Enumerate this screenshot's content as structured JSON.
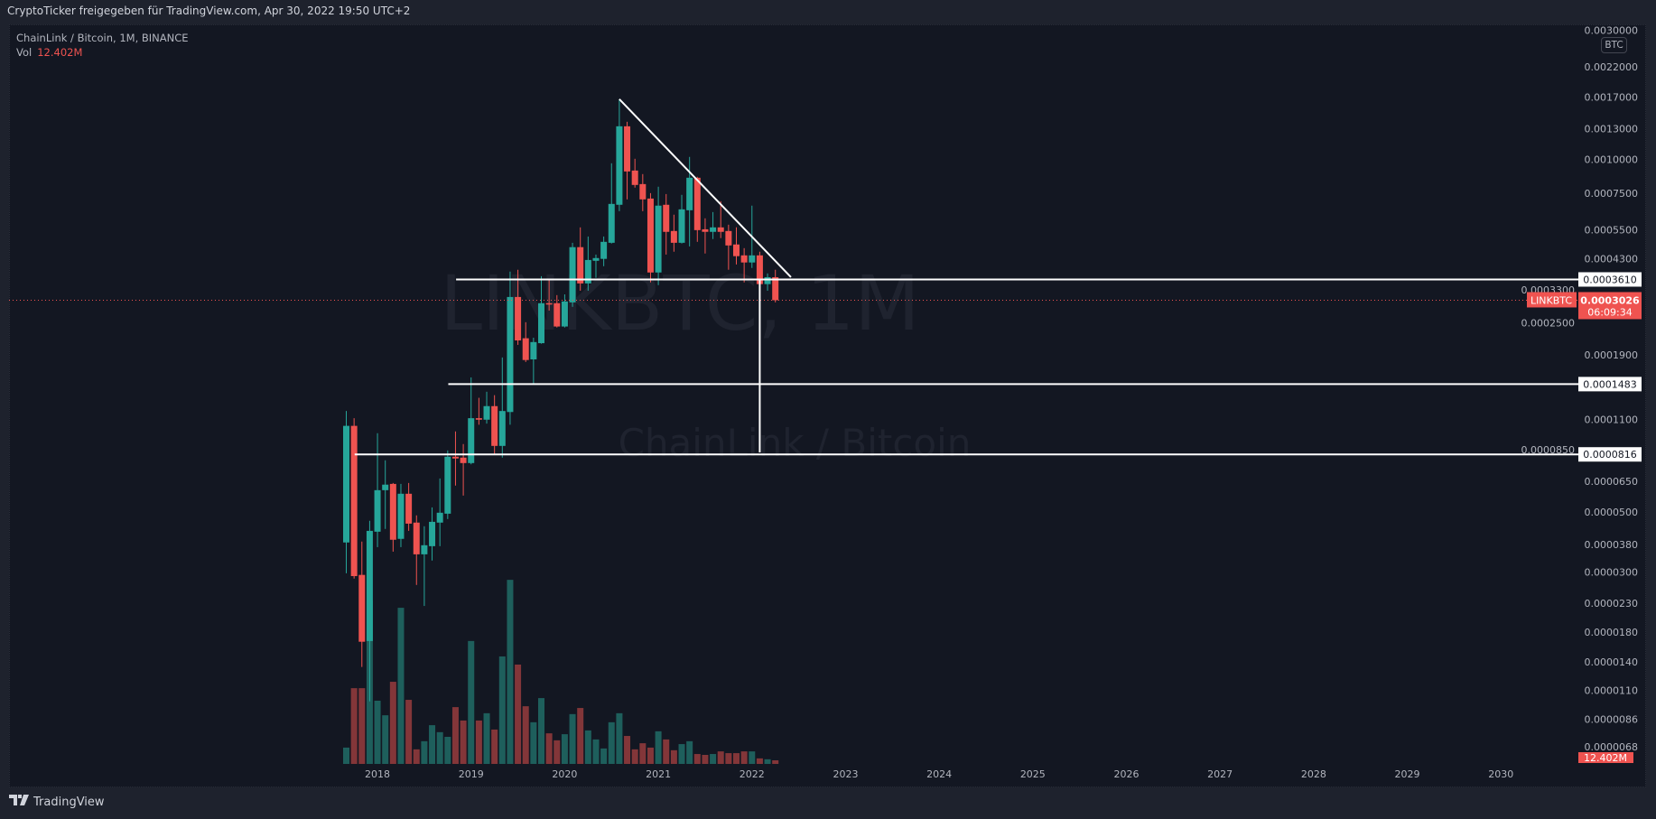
{
  "header": {
    "shared_by": "CryptoTicker freigegeben für TradingView.com, Apr 30, 2022 19:50 UTC+2"
  },
  "legend": {
    "symbol_line": "ChainLink / Bitcoin, 1M, BINANCE",
    "vol_label": "Vol",
    "vol_value": "12.402M"
  },
  "currency_badge": "BTC",
  "watermark": {
    "symbol": "LINKBTC, 1M",
    "description": "ChainLink / Bitcoin"
  },
  "footer": {
    "brand": "TradingView"
  },
  "colors": {
    "up": "#26a69a",
    "down": "#ef5350",
    "up_volume": "#1e5f5c",
    "down_volume": "#833639",
    "background": "#131722",
    "drawing": "#ffffff"
  },
  "chart_data": {
    "type": "candlestick",
    "symbol": "LINKBTC",
    "interval": "1M",
    "exchange": "BINANCE",
    "y_scale": "log",
    "ylim": [
      6.2e-06,
      0.0032
    ],
    "xlim": [
      "2017-09",
      "2030-12"
    ],
    "grid": false,
    "y_ticks": [
      "0.0030000",
      "0.0022000",
      "0.0017000",
      "0.0013000",
      "0.0010000",
      "0.0007500",
      "0.0005500",
      "0.0004300",
      "0.0003300",
      "0.0002500",
      "0.0001900",
      "0.0001100",
      "0.0000850",
      "0.0000650",
      "0.0000500",
      "0.0000380",
      "0.0000300",
      "0.0000230",
      "0.0000180",
      "0.0000140",
      "0.0000110",
      "0.0000086",
      "0.0000068"
    ],
    "x_ticks": [
      "2018",
      "2019",
      "2020",
      "2021",
      "2022",
      "2023",
      "2024",
      "2025",
      "2026",
      "2027",
      "2028",
      "2029",
      "2030"
    ],
    "columns": [
      "month",
      "open",
      "high",
      "low",
      "close",
      "volume_M"
    ],
    "rows": [
      [
        "2017-09",
        3.86e-05,
        0.000118,
        2.97e-05,
        0.000104,
        56
      ],
      [
        "2017-10",
        0.000104,
        0.000111,
        2.84e-05,
        2.9e-05,
        260
      ],
      [
        "2017-11",
        2.93e-05,
        3.89e-05,
        1.34e-05,
        1.66e-05,
        260
      ],
      [
        "2017-12",
        1.67e-05,
        4.64e-05,
        1e-05,
        4.26e-05,
        561
      ],
      [
        "2018-01",
        4.23e-05,
        9.77e-05,
        3.71e-05,
        6.02e-05,
        217
      ],
      [
        "2018-02",
        6.02e-05,
        7.76e-05,
        4.33e-05,
        6.31e-05,
        167
      ],
      [
        "2018-03",
        6.35e-05,
        6.4e-05,
        3.57e-05,
        3.95e-05,
        282
      ],
      [
        "2018-04",
        3.98e-05,
        6.35e-05,
        3.71e-05,
        5.84e-05,
        536
      ],
      [
        "2018-05",
        5.84e-05,
        6.4e-05,
        4.26e-05,
        4.53e-05,
        220
      ],
      [
        "2018-06",
        4.57e-05,
        4.86e-05,
        2.69e-05,
        3.49e-05,
        50
      ],
      [
        "2018-07",
        3.49e-05,
        4.43e-05,
        2.25e-05,
        3.77e-05,
        78
      ],
      [
        "2018-08",
        3.74e-05,
        5.2e-05,
        3.31e-05,
        4.6e-05,
        133
      ],
      [
        "2018-09",
        4.57e-05,
        6.65e-05,
        3.74e-05,
        4.97e-05,
        109
      ],
      [
        "2018-10",
        4.93e-05,
        8.44e-05,
        4.71e-05,
        8e-05,
        93
      ],
      [
        "2018-11",
        8e-05,
        9.92e-05,
        6.26e-05,
        7.88e-05,
        195
      ],
      [
        "2018-12",
        7.94e-05,
        8.91e-05,
        5.75e-05,
        7.58e-05,
        149
      ],
      [
        "2019-01",
        7.58e-05,
        0.000157,
        7.5e-05,
        0.000111,
        422
      ],
      [
        "2019-02",
        0.000111,
        0.000132,
        0.000105,
        0.0001096,
        149
      ],
      [
        "2019-03",
        0.0001096,
        0.000139,
        0.000106,
        0.000123,
        174
      ],
      [
        "2019-04",
        0.000123,
        0.000135,
        8.12e-05,
        8.77e-05,
        118
      ],
      [
        "2019-05",
        8.77e-05,
        0.000186,
        7.94e-05,
        0.000118,
        369
      ],
      [
        "2019-06",
        0.000117,
        0.000386,
        0.000105,
        0.000311,
        632
      ],
      [
        "2019-07",
        0.000311,
        0.000392,
        0.000207,
        0.000215,
        341
      ],
      [
        "2019-08",
        0.000219,
        0.000251,
        0.000179,
        0.000182,
        198
      ],
      [
        "2019-09",
        0.000183,
        0.00022,
        0.000148,
        0.000212,
        143
      ],
      [
        "2019-10",
        0.00021,
        0.000371,
        0.000209,
        0.000295,
        226
      ],
      [
        "2019-11",
        0.000295,
        0.000363,
        0.000277,
        0.000293,
        105
      ],
      [
        "2019-12",
        0.000295,
        0.000316,
        0.00024,
        0.000242,
        81
      ],
      [
        "2020-01",
        0.000242,
        0.000318,
        0.00024,
        0.0002995,
        102
      ],
      [
        "2020-02",
        0.000297,
        0.000493,
        0.000286,
        0.000475,
        171
      ],
      [
        "2020-03",
        0.000475,
        0.000562,
        0.000328,
        0.000349,
        192
      ],
      [
        "2020-04",
        0.000349,
        0.00052,
        0.000328,
        0.000426,
        115
      ],
      [
        "2020-05",
        0.000423,
        0.000446,
        0.000366,
        0.000433,
        84
      ],
      [
        "2020-06",
        0.00043,
        0.00052,
        0.000404,
        0.000497,
        53
      ],
      [
        "2020-07",
        0.000493,
        0.000969,
        0.00049,
        0.000686,
        143
      ],
      [
        "2020-08",
        0.000681,
        0.001671,
        0.000645,
        0.001327,
        174
      ],
      [
        "2020-09",
        0.001327,
        0.001379,
        0.000713,
        0.000904,
        96
      ],
      [
        "2020-10",
        0.000911,
        0.001007,
        0.000788,
        0.000806,
        50
      ],
      [
        "2020-11",
        0.000812,
        0.000884,
        0.000645,
        0.000713,
        71
      ],
      [
        "2020-12",
        0.000718,
        0.000752,
        0.000352,
        0.000383,
        56
      ],
      [
        "2021-01",
        0.000383,
        0.000794,
        0.000344,
        0.000676,
        112
      ],
      [
        "2021-02",
        0.000681,
        0.000746,
        0.000446,
        0.000541,
        84
      ],
      [
        "2021-03",
        0.000545,
        0.000626,
        0.000457,
        0.000493,
        47
      ],
      [
        "2021-04",
        0.000493,
        0.000741,
        0.00049,
        0.000655,
        68
      ],
      [
        "2021-05",
        0.00065,
        0.001023,
        0.000478,
        0.000857,
        78
      ],
      [
        "2021-06",
        0.000857,
        0.000864,
        0.000497,
        0.000549,
        34
      ],
      [
        "2021-07",
        0.000553,
        0.000607,
        0.00045,
        0.000541,
        31
      ],
      [
        "2021-08",
        0.000541,
        0.00064,
        0.000509,
        0.000562,
        34
      ],
      [
        "2021-09",
        0.000562,
        0.000702,
        0.000513,
        0.000541,
        43
      ],
      [
        "2021-10",
        0.000545,
        0.000575,
        0.000392,
        0.000482,
        37
      ],
      [
        "2021-11",
        0.000486,
        0.000562,
        0.00041,
        0.00044,
        37
      ],
      [
        "2021-12",
        0.000443,
        0.000471,
        0.000352,
        0.000417,
        43
      ],
      [
        "2022-01",
        0.000417,
        0.000676,
        0.000398,
        0.000443,
        43
      ],
      [
        "2022-02",
        0.000443,
        0.000457,
        0.000347,
        0.000347,
        19
      ],
      [
        "2022-03",
        0.000347,
        0.00038,
        0.000328,
        0.000368,
        16
      ],
      [
        "2022-04",
        0.000368,
        0.000392,
        0.000297,
        0.0003026,
        12.402
      ]
    ],
    "last_price": {
      "symbol_tag": "LINKBTC",
      "value": "0.0003026",
      "countdown": "06:09:34"
    },
    "volume_label": "12.402M",
    "drawings": {
      "horizontal_levels": [
        {
          "label": "0.0003610",
          "price": 0.000361,
          "from": "2018-12"
        },
        {
          "label": "0.0001483",
          "price": 0.0001483,
          "from": "2018-11"
        },
        {
          "label": "0.0000816",
          "price": 8.16e-05,
          "from": "2017-11"
        }
      ],
      "trendline": {
        "from": [
          "2020-08",
          0.001671
        ],
        "to": [
          "2022-06",
          0.000368
        ]
      },
      "vertical_line": {
        "month": "2022-02",
        "from_price": 0.000358,
        "to_price": 8.3e-05
      }
    }
  }
}
